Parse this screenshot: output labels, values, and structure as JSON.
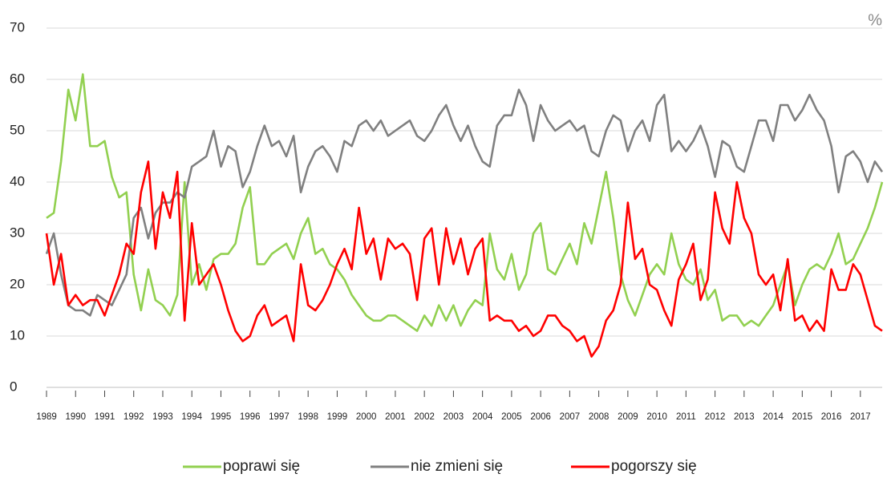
{
  "chart_data": {
    "type": "line",
    "y_unit": "%",
    "categories": [
      "1989",
      null,
      null,
      null,
      "1990",
      null,
      null,
      null,
      "1991",
      null,
      null,
      null,
      "1992",
      null,
      null,
      null,
      "1993",
      null,
      null,
      null,
      "1994",
      null,
      null,
      null,
      "1995",
      null,
      null,
      null,
      "1996",
      null,
      null,
      null,
      "1997",
      null,
      null,
      null,
      "1998",
      null,
      null,
      null,
      "1999",
      null,
      null,
      null,
      "2000",
      null,
      null,
      null,
      "2001",
      null,
      null,
      null,
      "2002",
      null,
      null,
      null,
      "2003",
      null,
      null,
      null,
      "2004",
      null,
      null,
      null,
      "2005",
      null,
      null,
      null,
      "2006",
      null,
      null,
      null,
      "2007",
      null,
      null,
      null,
      "2008",
      null,
      null,
      null,
      "2009",
      null,
      null,
      null,
      "2010",
      null,
      null,
      null,
      "2011",
      null,
      null,
      null,
      "2012",
      null,
      null,
      null,
      "2013",
      null,
      null,
      null,
      "2014",
      null,
      null,
      null,
      "2015",
      null,
      null,
      null,
      "2016",
      null,
      null,
      null,
      "2017",
      null,
      null,
      null
    ],
    "series": [
      {
        "name": "poprawi się",
        "color": "#92d050",
        "values": [
          33,
          34,
          44,
          58,
          52,
          61,
          47,
          47,
          48,
          41,
          37,
          38,
          22,
          15,
          23,
          17,
          16,
          14,
          18,
          40,
          20,
          24,
          19,
          25,
          26,
          26,
          28,
          35,
          39,
          24,
          24,
          26,
          27,
          28,
          25,
          30,
          33,
          26,
          27,
          24,
          23,
          21,
          18,
          16,
          14,
          13,
          13,
          14,
          14,
          13,
          12,
          11,
          14,
          12,
          16,
          13,
          16,
          12,
          15,
          17,
          16,
          30,
          23,
          21,
          26,
          19,
          22,
          30,
          32,
          23,
          22,
          25,
          28,
          24,
          32,
          28,
          35,
          42,
          33,
          22,
          17,
          14,
          18,
          22,
          24,
          22,
          30,
          24,
          21,
          20,
          23,
          17,
          19,
          13,
          14,
          14,
          12,
          13,
          12,
          14,
          16,
          20,
          24,
          16,
          20,
          23,
          24,
          23,
          26,
          30,
          24,
          25,
          28,
          31,
          35,
          40
        ]
      },
      {
        "name": "nie zmieni się",
        "color": "#808080",
        "values": [
          26,
          30,
          22,
          16,
          15,
          15,
          14,
          18,
          17,
          16,
          19,
          22,
          33,
          35,
          29,
          34,
          36,
          36,
          38,
          37,
          43,
          44,
          45,
          50,
          43,
          47,
          46,
          39,
          42,
          47,
          51,
          47,
          48,
          45,
          49,
          38,
          43,
          46,
          47,
          45,
          42,
          48,
          47,
          51,
          52,
          50,
          52,
          49,
          50,
          51,
          52,
          49,
          48,
          50,
          53,
          55,
          51,
          48,
          51,
          47,
          44,
          43,
          51,
          53,
          53,
          58,
          55,
          48,
          55,
          52,
          50,
          51,
          52,
          50,
          51,
          46,
          45,
          50,
          53,
          52,
          46,
          50,
          52,
          48,
          55,
          57,
          46,
          48,
          46,
          48,
          51,
          47,
          41,
          48,
          47,
          43,
          42,
          47,
          52,
          52,
          48,
          55,
          55,
          52,
          54,
          57,
          54,
          52,
          47,
          38,
          45,
          46,
          44,
          40,
          44,
          42
        ]
      },
      {
        "name": "pogorszy się",
        "color": "#ff0000",
        "values": [
          30,
          20,
          26,
          16,
          18,
          16,
          17,
          17,
          14,
          18,
          22,
          28,
          26,
          38,
          44,
          27,
          38,
          33,
          42,
          13,
          32,
          20,
          22,
          24,
          20,
          15,
          11,
          9,
          10,
          14,
          16,
          12,
          13,
          14,
          9,
          24,
          16,
          15,
          17,
          20,
          24,
          27,
          23,
          35,
          26,
          29,
          21,
          29,
          27,
          28,
          26,
          17,
          29,
          31,
          20,
          31,
          24,
          29,
          22,
          27,
          29,
          13,
          14,
          13,
          13,
          11,
          12,
          10,
          11,
          14,
          14,
          12,
          11,
          9,
          10,
          6,
          8,
          13,
          15,
          20,
          36,
          25,
          27,
          20,
          19,
          15,
          12,
          21,
          24,
          28,
          17,
          21,
          38,
          31,
          28,
          40,
          33,
          30,
          22,
          20,
          22,
          15,
          25,
          13,
          14,
          11,
          13,
          11,
          23,
          19,
          19,
          24,
          22,
          17,
          12,
          11
        ]
      }
    ],
    "ylim": [
      0,
      70
    ],
    "yticks": [
      0,
      10,
      20,
      30,
      40,
      50,
      60,
      70
    ],
    "grid": true
  }
}
